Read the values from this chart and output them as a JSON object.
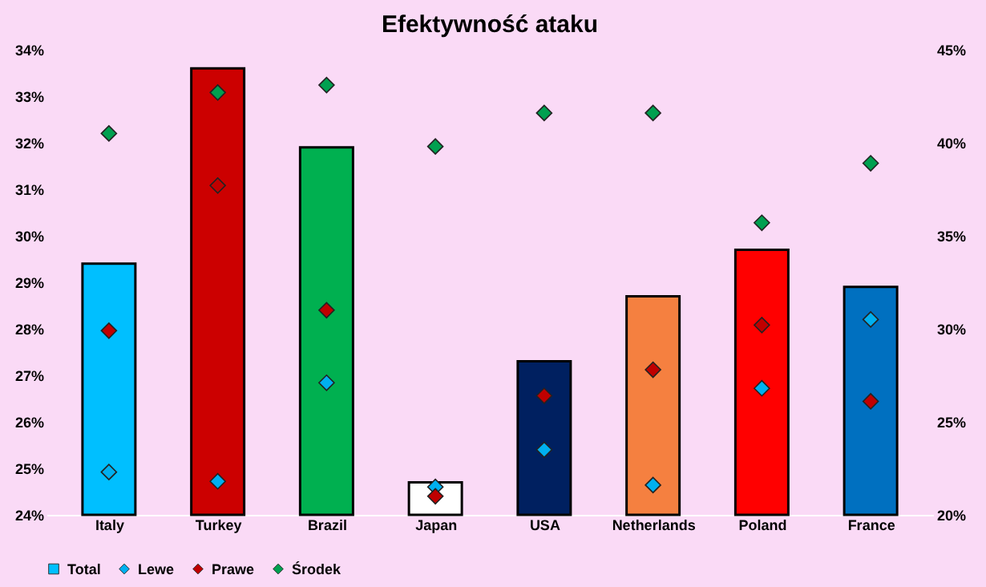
{
  "chart_data": {
    "type": "bar",
    "title": "Efektywność ataku",
    "categories": [
      "Italy",
      "Turkey",
      "Brazil",
      "Japan",
      "USA",
      "Netherlands",
      "Poland",
      "France"
    ],
    "series": [
      {
        "name": "Total",
        "color": "#00bfff",
        "colors": [
          "#00bfff",
          "#cc0000",
          "#00b050",
          "#ffffff",
          "#002060",
          "#f58040",
          "#ff0000",
          "#0070c0"
        ],
        "values": [
          29.4,
          33.6,
          31.9,
          24.7,
          27.3,
          28.7,
          29.7,
          28.9
        ]
      },
      {
        "name": "Lewe",
        "type": "scatter",
        "axis": "y2",
        "color": "#00b0f0",
        "values": [
          22.3,
          21.8,
          27.1,
          21.5,
          23.5,
          21.6,
          26.8,
          30.5
        ]
      },
      {
        "name": "Prawe",
        "type": "scatter",
        "axis": "y2",
        "color": "#c00000",
        "values": [
          29.9,
          37.7,
          31.0,
          21.0,
          26.4,
          27.8,
          30.2,
          26.1
        ]
      },
      {
        "name": "Środek",
        "type": "scatter",
        "axis": "y2",
        "color": "#00a050",
        "values": [
          40.5,
          42.7,
          43.1,
          39.8,
          41.6,
          41.6,
          35.7,
          38.9
        ]
      }
    ],
    "ylim": [
      24,
      34
    ],
    "yticks": [
      {
        "value": 24,
        "label": "24%"
      },
      {
        "value": 25,
        "label": "25%"
      },
      {
        "value": 26,
        "label": "26%"
      },
      {
        "value": 27,
        "label": "27%"
      },
      {
        "value": 28,
        "label": "28%"
      },
      {
        "value": 29,
        "label": "29%"
      },
      {
        "value": 30,
        "label": "30%"
      },
      {
        "value": 31,
        "label": "31%"
      },
      {
        "value": 32,
        "label": "32%"
      },
      {
        "value": 33,
        "label": "33%"
      },
      {
        "value": 34,
        "label": "34%"
      }
    ],
    "y2lim": [
      20,
      45
    ],
    "y2ticks": [
      {
        "value": 20,
        "label": "20%"
      },
      {
        "value": 25,
        "label": "25%"
      },
      {
        "value": 30,
        "label": "30%"
      },
      {
        "value": 35,
        "label": "35%"
      },
      {
        "value": 40,
        "label": "40%"
      },
      {
        "value": 45,
        "label": "45%"
      }
    ],
    "marker": "diamond",
    "grid": false,
    "legend": "bottom"
  }
}
